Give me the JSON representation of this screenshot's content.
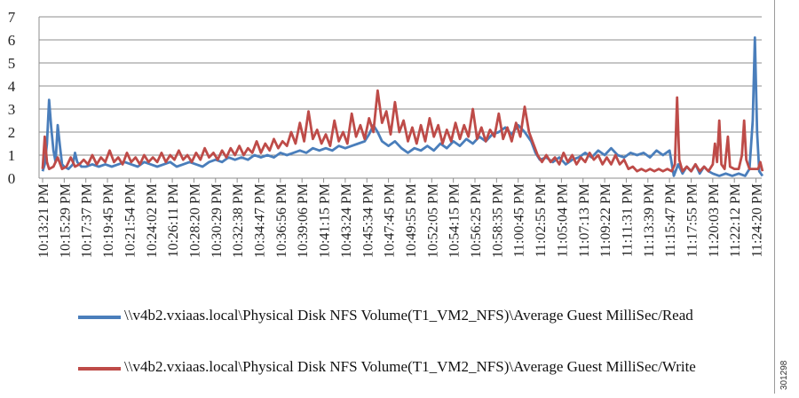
{
  "chart_data": {
    "type": "line",
    "title": "",
    "xlabel": "",
    "ylabel": "",
    "ylim": [
      0,
      7
    ],
    "yticks": [
      0,
      1,
      2,
      3,
      4,
      5,
      6,
      7
    ],
    "grid": true,
    "legend_position": "bottom",
    "categories": [
      "10:13:21 PM",
      "10:15:29 PM",
      "10:17:37 PM",
      "10:19:45 PM",
      "10:21:54 PM",
      "10:24:02 PM",
      "10:26:11 PM",
      "10:28:20 PM",
      "10:30:29 PM",
      "10:32:38 PM",
      "10:34:47 PM",
      "10:36:56 PM",
      "10:39:06 PM",
      "10:41:15 PM",
      "10:43:24 PM",
      "10:45:34 PM",
      "10:47:45 PM",
      "10:49:55 PM",
      "10:52:05 PM",
      "10:54:15 PM",
      "10:56:25 PM",
      "10:58:35 PM",
      "11:00:45 PM",
      "11:02:55 PM",
      "11:05:04 PM",
      "11:07:13 PM",
      "11:09:22 PM",
      "11:11:31 PM",
      "11:13:39 PM",
      "11:15:47 PM",
      "11:17:55 PM",
      "11:20:03 PM",
      "11:22:12 PM",
      "11:24:20 PM"
    ],
    "series": [
      {
        "name": "\\\\v4b2.vxiaas.local\\Physical Disk NFS Volume(T1_VM2_NFS)\\Average Guest MilliSec/Read",
        "color": "#4a7ebb",
        "points": [
          [
            0.0,
            0.3
          ],
          [
            0.1,
            0.6
          ],
          [
            0.2,
            1.5
          ],
          [
            0.3,
            3.4
          ],
          [
            0.4,
            2.2
          ],
          [
            0.5,
            1.2
          ],
          [
            0.6,
            0.7
          ],
          [
            0.7,
            2.3
          ],
          [
            0.8,
            1.4
          ],
          [
            0.9,
            0.6
          ],
          [
            1.0,
            0.5
          ],
          [
            1.2,
            0.4
          ],
          [
            1.4,
            0.6
          ],
          [
            1.5,
            1.1
          ],
          [
            1.6,
            0.7
          ],
          [
            1.8,
            0.5
          ],
          [
            2.0,
            0.5
          ],
          [
            2.3,
            0.6
          ],
          [
            2.6,
            0.5
          ],
          [
            2.9,
            0.6
          ],
          [
            3.2,
            0.5
          ],
          [
            3.5,
            0.6
          ],
          [
            3.8,
            0.7
          ],
          [
            4.1,
            0.6
          ],
          [
            4.4,
            0.5
          ],
          [
            4.7,
            0.7
          ],
          [
            5.0,
            0.6
          ],
          [
            5.3,
            0.5
          ],
          [
            5.6,
            0.6
          ],
          [
            5.9,
            0.7
          ],
          [
            6.2,
            0.5
          ],
          [
            6.5,
            0.6
          ],
          [
            6.8,
            0.7
          ],
          [
            7.1,
            0.6
          ],
          [
            7.4,
            0.5
          ],
          [
            7.7,
            0.7
          ],
          [
            8.0,
            0.8
          ],
          [
            8.3,
            0.7
          ],
          [
            8.6,
            0.9
          ],
          [
            8.9,
            0.8
          ],
          [
            9.2,
            0.9
          ],
          [
            9.5,
            0.8
          ],
          [
            9.8,
            1.0
          ],
          [
            10.1,
            0.9
          ],
          [
            10.4,
            1.0
          ],
          [
            10.7,
            0.9
          ],
          [
            11.0,
            1.1
          ],
          [
            11.3,
            1.0
          ],
          [
            11.6,
            1.1
          ],
          [
            11.9,
            1.2
          ],
          [
            12.2,
            1.1
          ],
          [
            12.5,
            1.3
          ],
          [
            12.8,
            1.2
          ],
          [
            13.1,
            1.3
          ],
          [
            13.4,
            1.2
          ],
          [
            13.7,
            1.4
          ],
          [
            14.0,
            1.3
          ],
          [
            14.3,
            1.4
          ],
          [
            14.6,
            1.5
          ],
          [
            14.9,
            1.6
          ],
          [
            15.1,
            1.9
          ],
          [
            15.3,
            2.3
          ],
          [
            15.5,
            2.0
          ],
          [
            15.7,
            1.6
          ],
          [
            16.0,
            1.4
          ],
          [
            16.3,
            1.6
          ],
          [
            16.6,
            1.3
          ],
          [
            16.9,
            1.1
          ],
          [
            17.2,
            1.3
          ],
          [
            17.5,
            1.2
          ],
          [
            17.8,
            1.4
          ],
          [
            18.1,
            1.2
          ],
          [
            18.4,
            1.5
          ],
          [
            18.7,
            1.3
          ],
          [
            19.0,
            1.6
          ],
          [
            19.3,
            1.4
          ],
          [
            19.6,
            1.7
          ],
          [
            19.9,
            1.5
          ],
          [
            20.2,
            1.8
          ],
          [
            20.5,
            1.6
          ],
          [
            20.8,
            1.9
          ],
          [
            21.1,
            2.0
          ],
          [
            21.4,
            2.2
          ],
          [
            21.7,
            1.9
          ],
          [
            22.0,
            2.3
          ],
          [
            22.3,
            2.0
          ],
          [
            22.6,
            1.6
          ],
          [
            22.8,
            1.1
          ],
          [
            23.0,
            0.8
          ],
          [
            23.3,
            0.9
          ],
          [
            23.6,
            0.7
          ],
          [
            23.9,
            0.9
          ],
          [
            24.2,
            0.6
          ],
          [
            24.5,
            0.8
          ],
          [
            24.8,
            0.9
          ],
          [
            25.1,
            1.1
          ],
          [
            25.4,
            0.9
          ],
          [
            25.7,
            1.2
          ],
          [
            26.0,
            1.0
          ],
          [
            26.3,
            1.3
          ],
          [
            26.6,
            1.0
          ],
          [
            26.9,
            0.9
          ],
          [
            27.2,
            1.1
          ],
          [
            27.5,
            1.0
          ],
          [
            27.8,
            1.1
          ],
          [
            28.1,
            0.9
          ],
          [
            28.4,
            1.2
          ],
          [
            28.7,
            1.0
          ],
          [
            29.0,
            1.2
          ],
          [
            29.2,
            0.1
          ],
          [
            29.4,
            0.6
          ],
          [
            29.6,
            0.2
          ],
          [
            29.8,
            0.5
          ],
          [
            30.0,
            0.3
          ],
          [
            30.2,
            0.6
          ],
          [
            30.4,
            0.2
          ],
          [
            30.6,
            0.5
          ],
          [
            30.8,
            0.3
          ],
          [
            31.0,
            0.2
          ],
          [
            31.3,
            0.1
          ],
          [
            31.6,
            0.2
          ],
          [
            31.9,
            0.1
          ],
          [
            32.2,
            0.2
          ],
          [
            32.5,
            0.1
          ],
          [
            32.7,
            0.4
          ],
          [
            32.85,
            2.5
          ],
          [
            32.95,
            6.1
          ],
          [
            33.05,
            2.0
          ],
          [
            33.15,
            0.3
          ],
          [
            33.3,
            0.1
          ]
        ]
      },
      {
        "name": "\\\\v4b2.vxiaas.local\\Physical Disk NFS Volume(T1_VM2_NFS)\\Average Guest MilliSec/Write",
        "color": "#be4b48",
        "points": [
          [
            0.0,
            0.4
          ],
          [
            0.1,
            1.8
          ],
          [
            0.2,
            0.7
          ],
          [
            0.3,
            0.4
          ],
          [
            0.5,
            0.5
          ],
          [
            0.7,
            0.9
          ],
          [
            0.9,
            0.4
          ],
          [
            1.1,
            0.5
          ],
          [
            1.3,
            0.9
          ],
          [
            1.5,
            0.5
          ],
          [
            1.7,
            0.6
          ],
          [
            1.9,
            0.8
          ],
          [
            2.1,
            0.6
          ],
          [
            2.3,
            1.0
          ],
          [
            2.5,
            0.6
          ],
          [
            2.7,
            0.9
          ],
          [
            2.9,
            0.7
          ],
          [
            3.1,
            1.2
          ],
          [
            3.3,
            0.7
          ],
          [
            3.5,
            0.9
          ],
          [
            3.7,
            0.6
          ],
          [
            3.9,
            1.1
          ],
          [
            4.1,
            0.7
          ],
          [
            4.3,
            0.9
          ],
          [
            4.5,
            0.6
          ],
          [
            4.7,
            1.0
          ],
          [
            4.9,
            0.7
          ],
          [
            5.1,
            0.9
          ],
          [
            5.3,
            0.7
          ],
          [
            5.5,
            1.1
          ],
          [
            5.7,
            0.7
          ],
          [
            5.9,
            1.0
          ],
          [
            6.1,
            0.8
          ],
          [
            6.3,
            1.2
          ],
          [
            6.5,
            0.8
          ],
          [
            6.7,
            1.0
          ],
          [
            6.9,
            0.7
          ],
          [
            7.1,
            1.1
          ],
          [
            7.3,
            0.8
          ],
          [
            7.5,
            1.3
          ],
          [
            7.7,
            0.9
          ],
          [
            7.9,
            1.1
          ],
          [
            8.1,
            0.8
          ],
          [
            8.3,
            1.2
          ],
          [
            8.5,
            0.9
          ],
          [
            8.7,
            1.3
          ],
          [
            8.9,
            1.0
          ],
          [
            9.1,
            1.4
          ],
          [
            9.3,
            1.0
          ],
          [
            9.5,
            1.3
          ],
          [
            9.7,
            1.1
          ],
          [
            9.9,
            1.6
          ],
          [
            10.1,
            1.1
          ],
          [
            10.3,
            1.5
          ],
          [
            10.5,
            1.2
          ],
          [
            10.7,
            1.7
          ],
          [
            10.9,
            1.3
          ],
          [
            11.1,
            1.6
          ],
          [
            11.3,
            1.4
          ],
          [
            11.5,
            2.0
          ],
          [
            11.7,
            1.5
          ],
          [
            11.9,
            2.4
          ],
          [
            12.1,
            1.6
          ],
          [
            12.3,
            2.9
          ],
          [
            12.5,
            1.7
          ],
          [
            12.7,
            2.1
          ],
          [
            12.9,
            1.5
          ],
          [
            13.1,
            1.9
          ],
          [
            13.3,
            1.4
          ],
          [
            13.5,
            2.5
          ],
          [
            13.7,
            1.6
          ],
          [
            13.9,
            2.0
          ],
          [
            14.1,
            1.5
          ],
          [
            14.3,
            2.8
          ],
          [
            14.5,
            1.8
          ],
          [
            14.7,
            2.3
          ],
          [
            14.9,
            1.7
          ],
          [
            15.1,
            2.6
          ],
          [
            15.3,
            2.0
          ],
          [
            15.5,
            3.8
          ],
          [
            15.7,
            2.4
          ],
          [
            15.9,
            2.9
          ],
          [
            16.1,
            1.9
          ],
          [
            16.3,
            3.3
          ],
          [
            16.5,
            2.0
          ],
          [
            16.7,
            2.5
          ],
          [
            16.9,
            1.6
          ],
          [
            17.1,
            2.2
          ],
          [
            17.3,
            1.5
          ],
          [
            17.5,
            2.3
          ],
          [
            17.7,
            1.6
          ],
          [
            17.9,
            2.6
          ],
          [
            18.1,
            1.8
          ],
          [
            18.3,
            2.3
          ],
          [
            18.5,
            1.5
          ],
          [
            18.7,
            2.1
          ],
          [
            18.9,
            1.6
          ],
          [
            19.1,
            2.4
          ],
          [
            19.3,
            1.7
          ],
          [
            19.5,
            2.3
          ],
          [
            19.7,
            1.8
          ],
          [
            19.9,
            3.0
          ],
          [
            20.1,
            1.7
          ],
          [
            20.3,
            2.2
          ],
          [
            20.5,
            1.6
          ],
          [
            20.7,
            2.1
          ],
          [
            20.9,
            1.8
          ],
          [
            21.1,
            2.8
          ],
          [
            21.3,
            1.7
          ],
          [
            21.5,
            2.2
          ],
          [
            21.7,
            1.6
          ],
          [
            21.9,
            2.4
          ],
          [
            22.1,
            1.8
          ],
          [
            22.3,
            3.1
          ],
          [
            22.5,
            2.0
          ],
          [
            22.7,
            1.5
          ],
          [
            22.9,
            1.0
          ],
          [
            23.1,
            0.7
          ],
          [
            23.3,
            1.0
          ],
          [
            23.5,
            0.7
          ],
          [
            23.7,
            0.9
          ],
          [
            23.9,
            0.6
          ],
          [
            24.1,
            1.1
          ],
          [
            24.3,
            0.7
          ],
          [
            24.5,
            1.0
          ],
          [
            24.7,
            0.6
          ],
          [
            24.9,
            0.9
          ],
          [
            25.1,
            0.7
          ],
          [
            25.3,
            1.1
          ],
          [
            25.5,
            0.8
          ],
          [
            25.7,
            1.0
          ],
          [
            25.9,
            0.6
          ],
          [
            26.1,
            0.9
          ],
          [
            26.3,
            0.6
          ],
          [
            26.5,
            1.0
          ],
          [
            26.7,
            0.6
          ],
          [
            26.9,
            0.8
          ],
          [
            27.1,
            0.4
          ],
          [
            27.3,
            0.5
          ],
          [
            27.5,
            0.3
          ],
          [
            27.7,
            0.4
          ],
          [
            27.9,
            0.3
          ],
          [
            28.1,
            0.4
          ],
          [
            28.3,
            0.3
          ],
          [
            28.5,
            0.4
          ],
          [
            28.7,
            0.3
          ],
          [
            28.9,
            0.4
          ],
          [
            29.1,
            0.3
          ],
          [
            29.25,
            0.6
          ],
          [
            29.35,
            3.5
          ],
          [
            29.45,
            0.8
          ],
          [
            29.6,
            0.3
          ],
          [
            29.8,
            0.5
          ],
          [
            30.0,
            0.3
          ],
          [
            30.2,
            0.6
          ],
          [
            30.4,
            0.3
          ],
          [
            30.6,
            0.5
          ],
          [
            30.8,
            0.3
          ],
          [
            31.0,
            0.6
          ],
          [
            31.1,
            1.5
          ],
          [
            31.2,
            0.7
          ],
          [
            31.3,
            2.5
          ],
          [
            31.4,
            0.6
          ],
          [
            31.55,
            0.4
          ],
          [
            31.7,
            1.8
          ],
          [
            31.8,
            0.5
          ],
          [
            32.0,
            0.4
          ],
          [
            32.2,
            0.4
          ],
          [
            32.35,
            1.0
          ],
          [
            32.45,
            2.5
          ],
          [
            32.55,
            0.8
          ],
          [
            32.7,
            0.4
          ],
          [
            32.9,
            0.4
          ],
          [
            33.1,
            0.4
          ],
          [
            33.2,
            0.7
          ],
          [
            33.3,
            0.3
          ]
        ]
      }
    ]
  },
  "figure_id": "301298"
}
